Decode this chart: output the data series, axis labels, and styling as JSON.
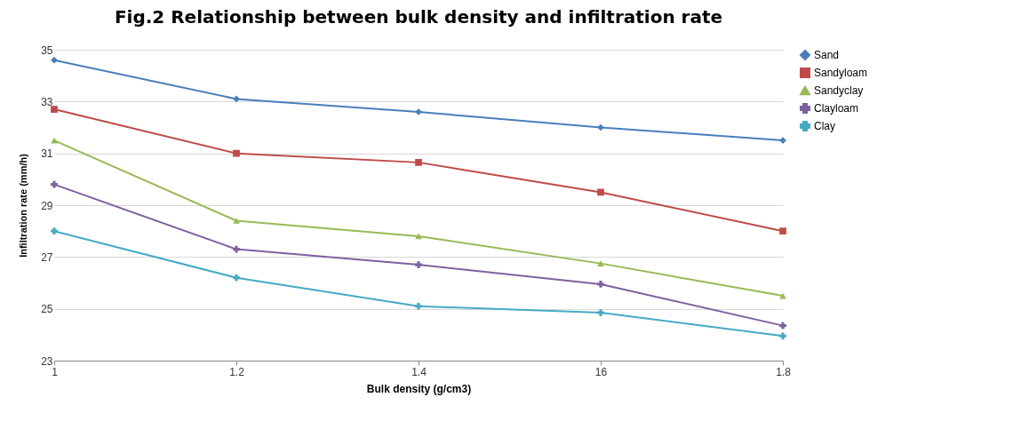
{
  "chart_data": {
    "type": "line",
    "title": "Fig.2 Relationship between bulk density and infiltration rate",
    "xlabel": "Bulk density (g/cm3)",
    "ylabel": "Infiltration rate (mm/h)",
    "categories": [
      "1",
      "1.2",
      "1.4",
      "16",
      "1.8"
    ],
    "ylim": [
      23,
      35
    ],
    "yticks": [
      23,
      25,
      27,
      29,
      31,
      33,
      35
    ],
    "grid": "y",
    "legend": "right",
    "series": [
      {
        "name": "Sand",
        "color": "#4a7ebb",
        "marker": "diamond",
        "values": [
          34.6,
          33.1,
          32.6,
          32.0,
          31.5
        ]
      },
      {
        "name": "Sandyloam",
        "color": "#be4b48",
        "marker": "square",
        "values": [
          32.7,
          31.0,
          30.65,
          29.5,
          28.0
        ]
      },
      {
        "name": "Sandyclay",
        "color": "#98b954",
        "marker": "triangle",
        "values": [
          31.5,
          28.4,
          27.8,
          26.75,
          25.5
        ]
      },
      {
        "name": "Clayloam",
        "color": "#7d60a0",
        "marker": "cross",
        "values": [
          29.8,
          27.3,
          26.7,
          25.95,
          24.35
        ]
      },
      {
        "name": "Clay",
        "color": "#46aac5",
        "marker": "cross",
        "values": [
          28.0,
          26.2,
          25.1,
          24.85,
          23.95
        ]
      }
    ]
  }
}
